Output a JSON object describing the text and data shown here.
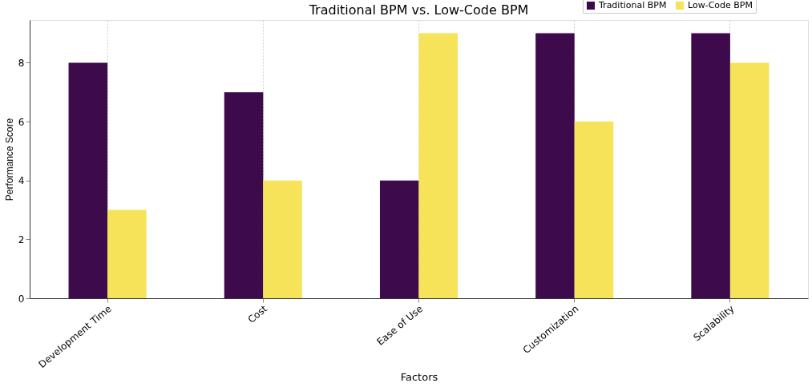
{
  "chart_data": {
    "type": "bar",
    "title": "Traditional BPM vs. Low-Code BPM",
    "xlabel": "Factors",
    "ylabel": "Performance Score",
    "categories": [
      "Development Time",
      "Cost",
      "Ease of Use",
      "Customization",
      "Scalability"
    ],
    "series": [
      {
        "name": "Traditional BPM",
        "color": "#3d0a4b",
        "values": [
          8,
          7,
          4,
          9,
          9
        ]
      },
      {
        "name": "Low-Code BPM",
        "color": "#f6e35a",
        "values": [
          3,
          4,
          9,
          6,
          8
        ]
      }
    ],
    "ylim": [
      0,
      9.45
    ],
    "yticks": [
      0,
      2,
      4,
      6,
      8
    ],
    "grid": "x",
    "legend": "top right"
  }
}
